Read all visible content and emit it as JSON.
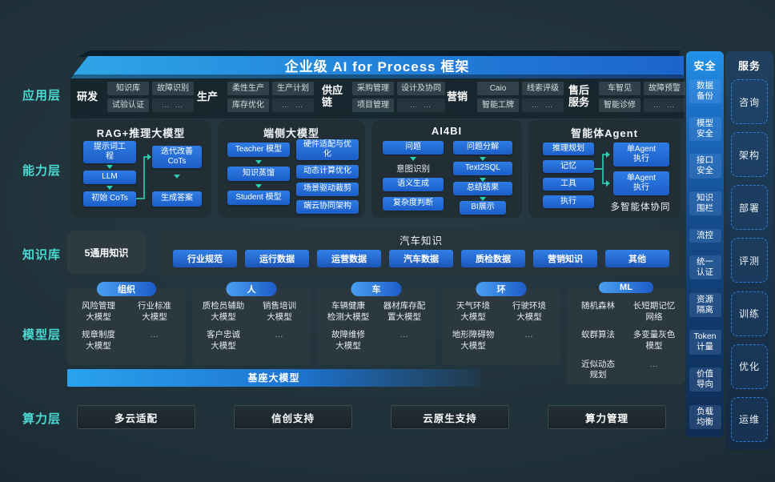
{
  "banner": {
    "title": "企业级 AI for Process 框架"
  },
  "layer_labels": [
    "应用层",
    "能力层",
    "知识库",
    "模型层",
    "算力层"
  ],
  "colors": {
    "accent_cyan": "#4ad9d3",
    "chip_blue": "#2470dd",
    "arrow_teal": "#2bd0b2",
    "banner_blue": "#2489dd"
  },
  "app": {
    "groups": [
      {
        "name": "研发",
        "rows": [
          [
            "知识库",
            "故障识别"
          ],
          [
            "试验认证",
            "… …"
          ]
        ]
      },
      {
        "name": "生产",
        "rows": [
          [
            "柔性生产",
            "生产计划"
          ],
          [
            "库存优化",
            "… …"
          ]
        ]
      },
      {
        "name": "供应链",
        "rows": [
          [
            "采购管理",
            "设计及协同"
          ],
          [
            "项目管理",
            "… …"
          ]
        ]
      },
      {
        "name": "营销",
        "rows": [
          [
            "Caio",
            "线索评级"
          ],
          [
            "智能工牌",
            "… …"
          ]
        ]
      },
      {
        "name": "售后服务",
        "rows": [
          [
            "车智见",
            "故障预警"
          ],
          [
            "智能诊修",
            "… …"
          ]
        ]
      }
    ]
  },
  "capability": {
    "boxes": [
      {
        "title": "RAG+推理大模型",
        "left": [
          "提示词工\n程",
          "LLM",
          "初始 CoTs"
        ],
        "right": [
          "迭代改善\nCoTs",
          "生成答案"
        ]
      },
      {
        "title": "端侧大模型",
        "left": [
          "Teacher 模型",
          "知识蒸馏",
          "Student 模型"
        ],
        "right": [
          "硬件适配与优\n化",
          "动态计算优化",
          "场景驱动裁剪",
          "端云协同架构"
        ]
      },
      {
        "title": "AI4BI",
        "left": [
          "问题",
          "意图识别",
          "语义生成",
          "复杂度判断"
        ],
        "right": [
          "问题分解",
          "Text2SQL",
          "总结结果",
          "BI展示"
        ]
      },
      {
        "title": "智能体Agent",
        "left": [
          "推理规划",
          "记忆",
          "工具",
          "执行"
        ],
        "right": [
          "单Agent\n执行",
          "单Agent\n执行"
        ],
        "caption": "多智能体协同"
      }
    ]
  },
  "knowledge": {
    "general": "5通用知识",
    "auto_title": "汽车知识",
    "chips": [
      "行业规范",
      "运行数据",
      "运营数据",
      "汽车数据",
      "质检数据",
      "营销知识",
      "其他"
    ]
  },
  "model": {
    "columns": [
      {
        "pill": "组织",
        "items": [
          "风险管理\n大模型",
          "行业标准\n大模型",
          "规章制度\n大模型",
          "…"
        ]
      },
      {
        "pill": "人",
        "items": [
          "质检员辅助\n大模型",
          "销售培训\n大模型",
          "客户忠诚\n大模型",
          "…"
        ]
      },
      {
        "pill": "车",
        "items": [
          "车辆健康\n检测大模型",
          "器材库存配\n置大模型",
          "故障维修\n大模型",
          "…"
        ]
      },
      {
        "pill": "环",
        "items": [
          "天气环境\n大模型",
          "行驶环境\n大模型",
          "地形障碍物\n大模型",
          "…"
        ]
      },
      {
        "pill": "ML",
        "items": [
          "随机森林",
          "长短期记忆\n网络",
          "蚁群算法",
          "多变量灰色\n模型",
          "近似动态\n规划",
          "…"
        ]
      }
    ],
    "base_bar": "基座大模型"
  },
  "compute": {
    "items": [
      "多云适配",
      "信创支持",
      "云原生支持",
      "算力管理"
    ]
  },
  "security": {
    "title": "安全",
    "items": [
      "数据\n备份",
      "模型\n安全",
      "接口\n安全",
      "知识\n围栏",
      "流控",
      "统一\n认证",
      "资源\n隔离",
      "Token\n计量",
      "价值\n导向",
      "负载\n均衡"
    ]
  },
  "service": {
    "title": "服务",
    "items": [
      "咨询",
      "架构",
      "部署",
      "评测",
      "训练",
      "优化",
      "运维"
    ]
  }
}
